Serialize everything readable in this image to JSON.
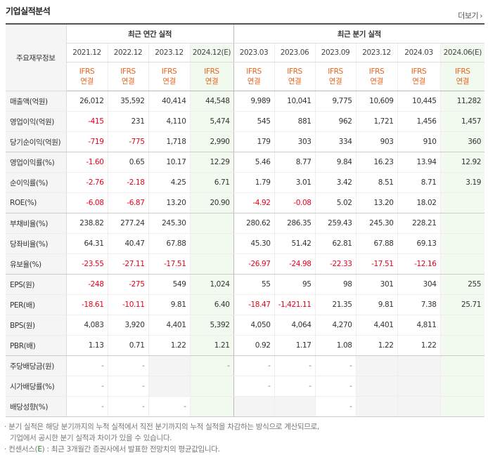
{
  "header": {
    "title": "기업실적분석",
    "more_label": "더보기"
  },
  "table": {
    "corner_label": "주요재무정보",
    "group_annual": "최근 연간 실적",
    "group_quarter": "최근 분기 실적",
    "periods": [
      "2021.12",
      "2022.12",
      "2023.12",
      "2024.12(E)",
      "2023.03",
      "2023.06",
      "2023.09",
      "2023.12",
      "2024.03",
      "2024.06(E)"
    ],
    "basis_top": "IFRS",
    "basis_bottom": "연결",
    "rows": [
      {
        "label": "매출액(억원)",
        "values": [
          "26,012",
          "35,592",
          "40,414",
          "44,548",
          "9,989",
          "10,041",
          "9,775",
          "10,609",
          "10,445",
          "11,282"
        ]
      },
      {
        "label": "영업이익(억원)",
        "values": [
          "-415",
          "231",
          "4,110",
          "5,474",
          "545",
          "881",
          "962",
          "1,721",
          "1,456",
          "1,457"
        ]
      },
      {
        "label": "당기순이익(억원)",
        "values": [
          "-719",
          "-775",
          "1,718",
          "2,990",
          "179",
          "303",
          "334",
          "903",
          "910",
          "360"
        ]
      },
      {
        "label": "영업이익률(%)",
        "values": [
          "-1.60",
          "0.65",
          "10.17",
          "12.29",
          "5.46",
          "8.77",
          "9.84",
          "16.23",
          "13.94",
          "12.92"
        ]
      },
      {
        "label": "순이익률(%)",
        "values": [
          "-2.76",
          "-2.18",
          "4.25",
          "6.71",
          "1.79",
          "3.01",
          "3.42",
          "8.51",
          "8.71",
          "3.19"
        ]
      },
      {
        "label": "ROE(%)",
        "values": [
          "-6.08",
          "-6.87",
          "13.20",
          "20.90",
          "-4.92",
          "-0.08",
          "5.02",
          "13.20",
          "18.02",
          ""
        ]
      },
      {
        "label": "부채비율(%)",
        "values": [
          "238.82",
          "277.24",
          "245.30",
          "",
          "280.62",
          "286.35",
          "259.43",
          "245.30",
          "228.21",
          ""
        ]
      },
      {
        "label": "당좌비율(%)",
        "values": [
          "64.31",
          "40.47",
          "67.88",
          "",
          "45.30",
          "51.42",
          "62.81",
          "67.88",
          "69.13",
          ""
        ]
      },
      {
        "label": "유보율(%)",
        "values": [
          "-23.55",
          "-27.11",
          "-17.51",
          "",
          "-26.97",
          "-24.98",
          "-22.33",
          "-17.51",
          "-12.16",
          ""
        ]
      },
      {
        "label": "EPS(원)",
        "values": [
          "-248",
          "-275",
          "549",
          "1,024",
          "55",
          "95",
          "98",
          "301",
          "304",
          "255"
        ]
      },
      {
        "label": "PER(배)",
        "values": [
          "-18.61",
          "-10.11",
          "9.81",
          "6.40",
          "-18.47",
          "-1,421.11",
          "21.35",
          "9.81",
          "7.38",
          "25.71"
        ]
      },
      {
        "label": "BPS(원)",
        "values": [
          "4,083",
          "3,920",
          "4,401",
          "5,392",
          "4,050",
          "4,064",
          "4,270",
          "4,401",
          "4,811",
          ""
        ]
      },
      {
        "label": "PBR(배)",
        "values": [
          "1.13",
          "0.71",
          "1.22",
          "1.21",
          "0.92",
          "1.17",
          "1.08",
          "1.22",
          "1.22",
          ""
        ]
      },
      {
        "label": "주당배당금(원)",
        "values": [
          "-",
          "-",
          "",
          "-",
          "-",
          "-",
          "-",
          "",
          "",
          ""
        ]
      },
      {
        "label": "시가배당률(%)",
        "values": [
          "-",
          "-",
          "",
          "",
          "-",
          "-",
          "-",
          "",
          "",
          ""
        ]
      },
      {
        "label": "배당성향(%)",
        "values": [
          "-",
          "-",
          "-",
          "",
          "",
          "",
          "-",
          "",
          "",
          ""
        ]
      }
    ]
  },
  "notes": {
    "line1": "분기 실적은 해당 분기까지의 누적 실적에서 직전 분기까지의 누적 실적을 차감하는 방식으로 계산되므로,",
    "line2": "기업에서 공시한 분기 실적과 차이가 있을 수 있습니다.",
    "line3_prefix": "컨센서스(",
    "line3_em": "E",
    "line3_suffix": ") : 최근 3개월간 증권사에서 발표한 전망치의 평균값입니다."
  }
}
